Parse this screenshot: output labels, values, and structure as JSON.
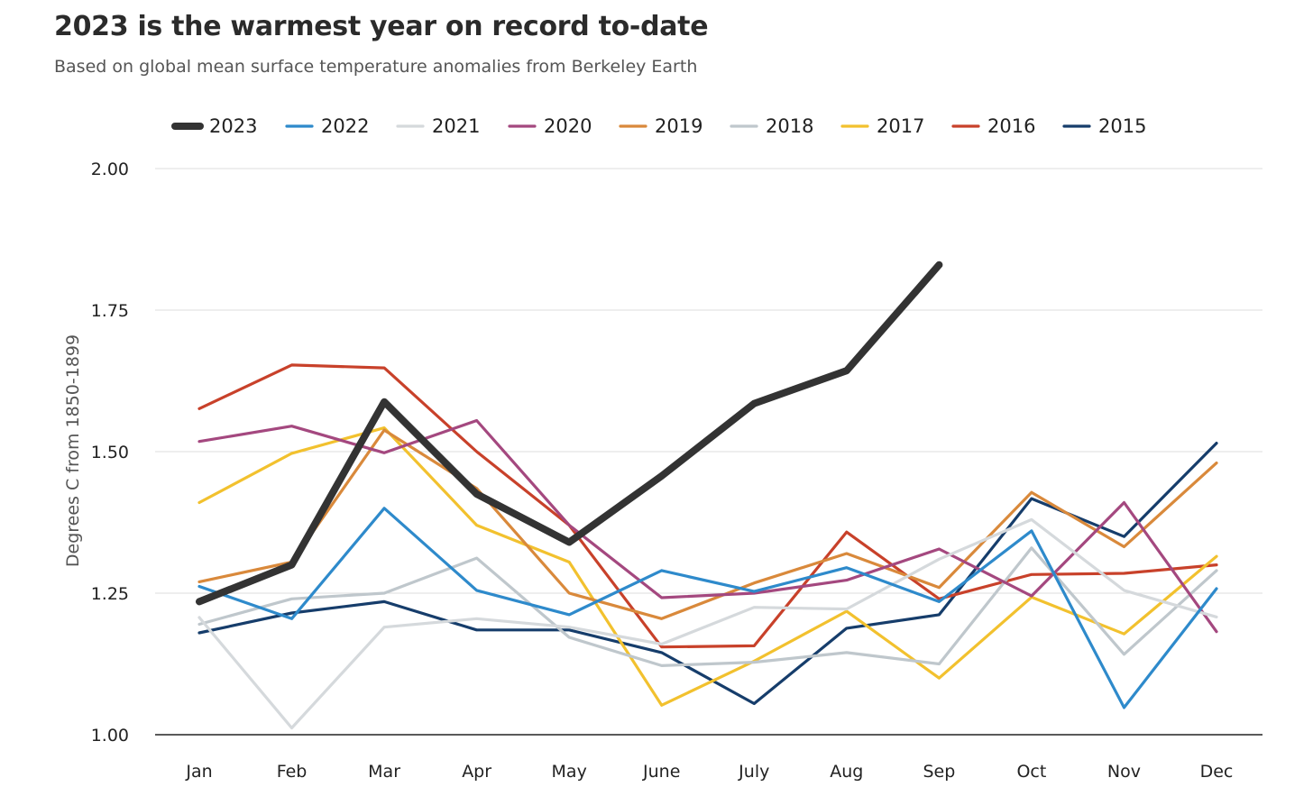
{
  "header": {
    "title": "2023 is the warmest year on record to-date",
    "subtitle": "Based on global mean surface temperature anomalies from Berkeley Earth"
  },
  "chart_data": {
    "type": "line",
    "title": "2023 is the warmest year on record to-date",
    "subtitle": "Based on global mean surface temperature anomalies from Berkeley Earth",
    "xlabel": "",
    "ylabel": "Degrees C from 1850-1899",
    "ylim": [
      1.0,
      2.0
    ],
    "yticks": [
      "1.00",
      "1.25",
      "1.50",
      "1.75",
      "2.00"
    ],
    "ytick_values": [
      1.0,
      1.25,
      1.5,
      1.75,
      2.0
    ],
    "grid": "horizontal",
    "legend_position": "top",
    "categories": [
      "Jan",
      "Feb",
      "Mar",
      "Apr",
      "May",
      "June",
      "July",
      "Aug",
      "Sep",
      "Oct",
      "Nov",
      "Dec"
    ],
    "series": [
      {
        "name": "2023",
        "color": "#333333",
        "emphasis": true,
        "values": [
          1.235,
          1.3,
          1.588,
          1.425,
          1.34,
          1.457,
          1.585,
          1.643,
          1.83,
          null,
          null,
          null
        ]
      },
      {
        "name": "2022",
        "color": "#2e8acb",
        "values": [
          1.262,
          1.205,
          1.4,
          1.255,
          1.212,
          1.29,
          1.253,
          1.295,
          1.235,
          1.36,
          1.048,
          1.258
        ]
      },
      {
        "name": "2021",
        "color": "#d5d9dc",
        "values": [
          1.207,
          1.012,
          1.19,
          1.205,
          1.19,
          1.16,
          1.225,
          1.222,
          1.31,
          1.38,
          1.255,
          1.208
        ]
      },
      {
        "name": "2020",
        "color": "#a4487f",
        "values": [
          1.518,
          1.545,
          1.498,
          1.555,
          1.37,
          1.242,
          1.25,
          1.273,
          1.328,
          1.245,
          1.41,
          1.182
        ]
      },
      {
        "name": "2019",
        "color": "#d9893b",
        "values": [
          1.27,
          1.305,
          1.538,
          1.435,
          1.25,
          1.205,
          1.268,
          1.32,
          1.26,
          1.428,
          1.332,
          1.48
        ]
      },
      {
        "name": "2018",
        "color": "#bfc7cc",
        "values": [
          1.195,
          1.24,
          1.25,
          1.312,
          1.172,
          1.122,
          1.128,
          1.145,
          1.125,
          1.33,
          1.142,
          1.29
        ]
      },
      {
        "name": "2017",
        "color": "#f2c12e",
        "values": [
          1.41,
          1.497,
          1.542,
          1.37,
          1.305,
          1.052,
          1.13,
          1.218,
          1.1,
          1.243,
          1.178,
          1.315
        ]
      },
      {
        "name": "2016",
        "color": "#c8412a",
        "values": [
          1.576,
          1.653,
          1.648,
          1.5,
          1.37,
          1.155,
          1.157,
          1.358,
          1.24,
          1.283,
          1.285,
          1.3
        ]
      },
      {
        "name": "2015",
        "color": "#163d6b",
        "values": [
          1.18,
          1.215,
          1.235,
          1.185,
          1.185,
          1.145,
          1.055,
          1.188,
          1.212,
          1.417,
          1.35,
          1.515
        ]
      }
    ]
  }
}
